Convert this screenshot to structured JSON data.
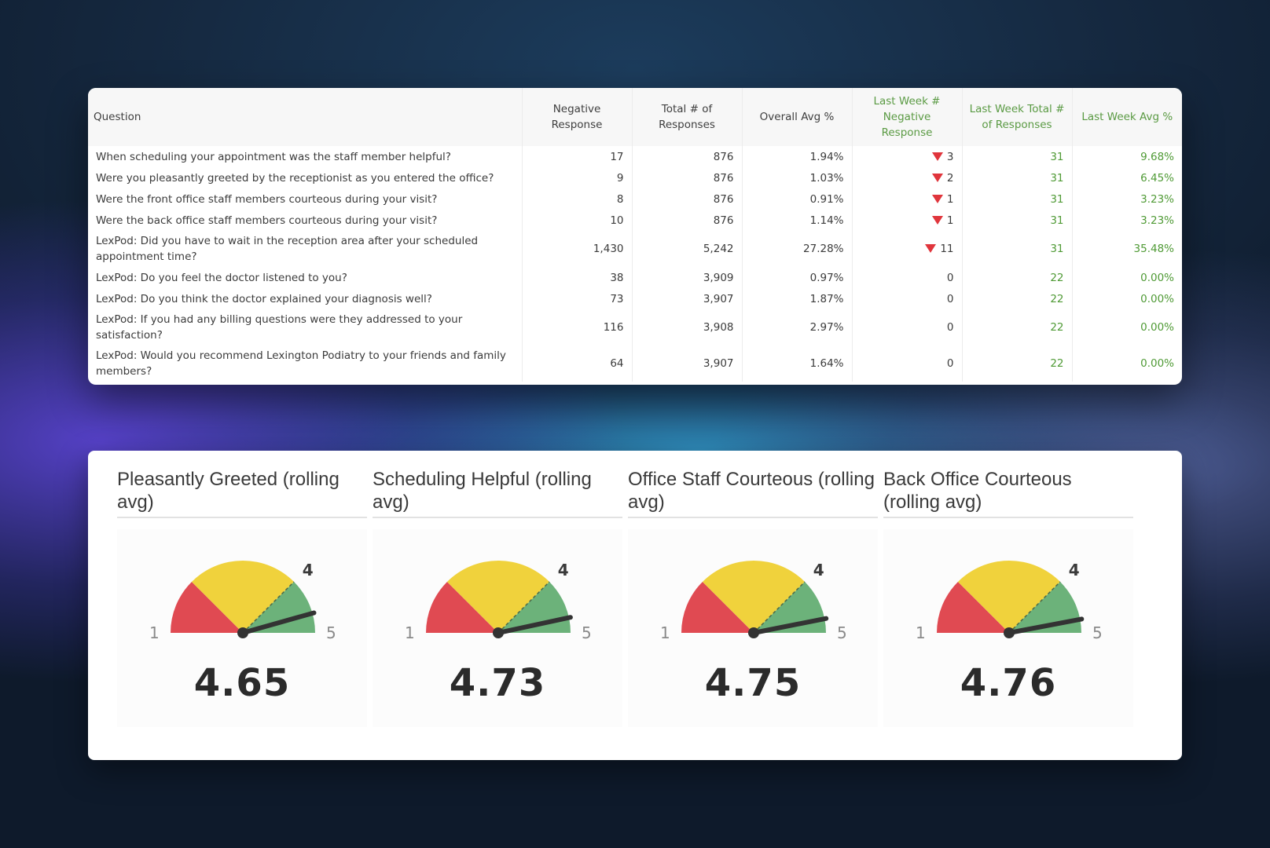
{
  "table": {
    "headers": [
      "Question",
      "Negative Response",
      "Total # of Responses",
      "Overall Avg %",
      "Last Week # Negative Response",
      "Last Week Total # of Responses",
      "Last Week Avg %"
    ],
    "rows": [
      {
        "question": "When scheduling your appointment was the staff member helpful?",
        "negative": "17",
        "total": "876",
        "avg": "1.94%",
        "lw_negative": "3",
        "lw_down": true,
        "lw_total": "31",
        "lw_avg": "9.68%"
      },
      {
        "question": "Were you pleasantly greeted by the receptionist as you entered the office?",
        "negative": "9",
        "total": "876",
        "avg": "1.03%",
        "lw_negative": "2",
        "lw_down": true,
        "lw_total": "31",
        "lw_avg": "6.45%"
      },
      {
        "question": "Were the front office staff members courteous during your visit?",
        "negative": "8",
        "total": "876",
        "avg": "0.91%",
        "lw_negative": "1",
        "lw_down": true,
        "lw_total": "31",
        "lw_avg": "3.23%"
      },
      {
        "question": "Were the back office staff members courteous during your visit?",
        "negative": "10",
        "total": "876",
        "avg": "1.14%",
        "lw_negative": "1",
        "lw_down": true,
        "lw_total": "31",
        "lw_avg": "3.23%"
      },
      {
        "question": "LexPod: Did you have to wait in the reception area after your scheduled appointment time?",
        "negative": "1,430",
        "total": "5,242",
        "avg": "27.28%",
        "lw_negative": "11",
        "lw_down": true,
        "lw_total": "31",
        "lw_avg": "35.48%"
      },
      {
        "question": "LexPod: Do you feel the doctor listened to you?",
        "negative": "38",
        "total": "3,909",
        "avg": "0.97%",
        "lw_negative": "0",
        "lw_down": false,
        "lw_total": "22",
        "lw_avg": "0.00%"
      },
      {
        "question": "LexPod: Do you think the doctor explained your diagnosis well?",
        "negative": "73",
        "total": "3,907",
        "avg": "1.87%",
        "lw_negative": "0",
        "lw_down": false,
        "lw_total": "22",
        "lw_avg": "0.00%"
      },
      {
        "question": "LexPod: If you had any billing questions were they addressed to your satisfaction?",
        "negative": "116",
        "total": "3,908",
        "avg": "2.97%",
        "lw_negative": "0",
        "lw_down": false,
        "lw_total": "22",
        "lw_avg": "0.00%"
      },
      {
        "question": "LexPod: Would you recommend Lexington Podiatry to your friends and family members?",
        "negative": "64",
        "total": "3,907",
        "avg": "1.64%",
        "lw_negative": "0",
        "lw_down": false,
        "lw_total": "22",
        "lw_avg": "0.00%"
      }
    ]
  },
  "gauges": [
    {
      "title": "Pleasantly Greeted (rolling avg)",
      "value": 4.65,
      "display": "4.65",
      "min": 1,
      "max": 5,
      "marker": 4,
      "min_label": "1",
      "max_label": "5",
      "marker_label": "4"
    },
    {
      "title": "Scheduling Helpful (rolling avg)",
      "value": 4.73,
      "display": "4.73",
      "min": 1,
      "max": 5,
      "marker": 4,
      "min_label": "1",
      "max_label": "5",
      "marker_label": "4"
    },
    {
      "title": "Office Staff Courteous (rolling avg)",
      "value": 4.75,
      "display": "4.75",
      "min": 1,
      "max": 5,
      "marker": 4,
      "min_label": "1",
      "max_label": "5",
      "marker_label": "4"
    },
    {
      "title": "Back Office Courteous (rolling avg)",
      "value": 4.76,
      "display": "4.76",
      "min": 1,
      "max": 5,
      "marker": 4,
      "min_label": "1",
      "max_label": "5",
      "marker_label": "4"
    }
  ],
  "colors": {
    "red_zone": "#e04a52",
    "yellow_zone": "#f0d23c",
    "green_zone": "#6cb27a",
    "needle": "#333333",
    "green_text": "#5a9a43",
    "down_arrow": "#e0353c"
  }
}
